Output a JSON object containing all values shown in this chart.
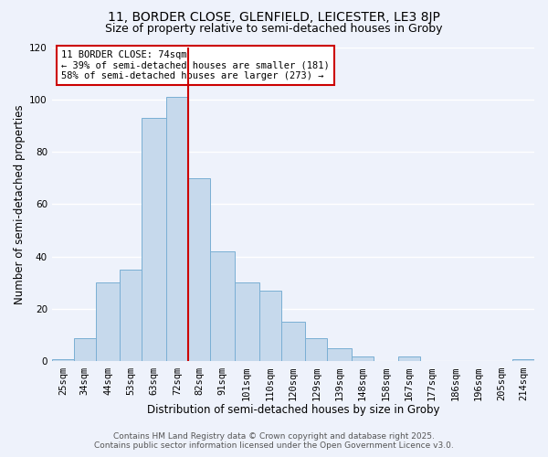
{
  "title": "11, BORDER CLOSE, GLENFIELD, LEICESTER, LE3 8JP",
  "subtitle": "Size of property relative to semi-detached houses in Groby",
  "xlabel": "Distribution of semi-detached houses by size in Groby",
  "ylabel": "Number of semi-detached properties",
  "bar_color": "#c6d9ec",
  "bar_edge_color": "#7aafd4",
  "background_color": "#eef2fb",
  "grid_color": "#ffffff",
  "bin_labels": [
    "25sqm",
    "34sqm",
    "44sqm",
    "53sqm",
    "63sqm",
    "72sqm",
    "82sqm",
    "91sqm",
    "101sqm",
    "110sqm",
    "120sqm",
    "129sqm",
    "139sqm",
    "148sqm",
    "158sqm",
    "167sqm",
    "177sqm",
    "186sqm",
    "196sqm",
    "205sqm",
    "214sqm"
  ],
  "bin_edges": [
    20.5,
    29.5,
    38.5,
    48.5,
    57.5,
    67.5,
    76.5,
    85.5,
    95.5,
    105.5,
    114.5,
    124.5,
    133.5,
    143.5,
    152.5,
    162.5,
    171.5,
    181.5,
    190.5,
    200.5,
    209.5,
    218.5
  ],
  "counts": [
    1,
    9,
    30,
    35,
    93,
    101,
    70,
    42,
    30,
    27,
    15,
    9,
    5,
    2,
    0,
    2,
    0,
    0,
    0,
    0,
    1
  ],
  "vline_x": 76.5,
  "vline_color": "#cc0000",
  "annotation_title": "11 BORDER CLOSE: 74sqm",
  "annotation_line1": "← 39% of semi-detached houses are smaller (181)",
  "annotation_line2": "58% of semi-detached houses are larger (273) →",
  "annotation_box_color": "#ffffff",
  "annotation_box_edge": "#cc0000",
  "ylim": [
    0,
    120
  ],
  "yticks": [
    0,
    20,
    40,
    60,
    80,
    100,
    120
  ],
  "footer_line1": "Contains HM Land Registry data © Crown copyright and database right 2025.",
  "footer_line2": "Contains public sector information licensed under the Open Government Licence v3.0.",
  "title_fontsize": 10,
  "subtitle_fontsize": 9,
  "xlabel_fontsize": 8.5,
  "ylabel_fontsize": 8.5,
  "tick_fontsize": 7.5,
  "annotation_fontsize": 7.5,
  "footer_fontsize": 6.5
}
